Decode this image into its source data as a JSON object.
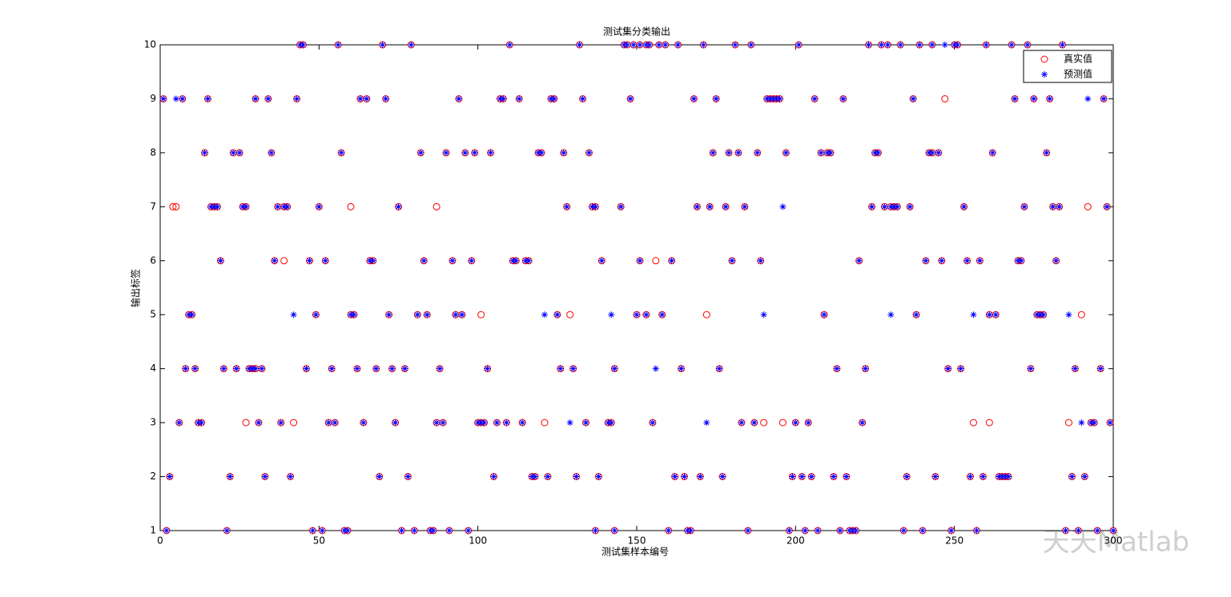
{
  "chart_data": {
    "type": "scatter",
    "title": "测试集分类输出",
    "xlabel": "测试集样本编号",
    "ylabel": "输出标签",
    "watermark": "天天Matlab",
    "legend": "northeast",
    "xlim": [
      0,
      300
    ],
    "xticks": [
      0,
      50,
      100,
      150,
      200,
      250,
      300
    ],
    "ylim": [
      1,
      10
    ],
    "yticks": [
      1,
      2,
      3,
      4,
      5,
      6,
      7,
      8,
      9,
      10
    ],
    "series": [
      {
        "name": "真实值",
        "color": "#ff0000",
        "marker": "circle",
        "x": [
          44,
          45,
          56,
          70,
          79,
          110,
          132,
          146,
          147,
          149,
          151,
          153,
          154,
          157,
          159,
          163,
          171,
          181,
          186,
          201,
          223,
          227,
          229,
          233,
          239,
          243,
          250,
          251,
          260,
          268,
          273,
          284,
          1,
          7,
          15,
          30,
          34,
          43,
          63,
          65,
          71,
          94,
          107,
          108,
          113,
          123,
          124,
          133,
          148,
          168,
          175,
          191,
          192,
          193,
          194,
          195,
          206,
          215,
          237,
          269,
          275,
          280,
          297,
          247,
          14,
          23,
          25,
          35,
          57,
          82,
          90,
          96,
          99,
          104,
          119,
          120,
          127,
          135,
          174,
          179,
          182,
          188,
          197,
          208,
          210,
          211,
          225,
          226,
          242,
          243,
          245,
          262,
          279,
          16,
          17,
          18,
          26,
          27,
          37,
          39,
          40,
          50,
          75,
          128,
          136,
          137,
          145,
          169,
          173,
          178,
          184,
          224,
          228,
          230,
          231,
          232,
          236,
          253,
          272,
          281,
          283,
          298,
          4,
          5,
          60,
          87,
          292,
          19,
          36,
          47,
          52,
          66,
          67,
          83,
          92,
          98,
          111,
          112,
          115,
          116,
          139,
          151,
          161,
          180,
          189,
          220,
          241,
          246,
          254,
          258,
          270,
          271,
          282,
          39,
          156,
          9,
          10,
          49,
          60,
          61,
          72,
          81,
          84,
          93,
          95,
          125,
          150,
          153,
          158,
          209,
          238,
          261,
          263,
          276,
          277,
          278,
          101,
          129,
          172,
          290,
          8,
          11,
          20,
          24,
          28,
          29,
          30,
          32,
          46,
          54,
          62,
          68,
          73,
          77,
          88,
          103,
          126,
          130,
          143,
          164,
          176,
          213,
          222,
          248,
          252,
          274,
          288,
          296,
          6,
          12,
          13,
          31,
          38,
          53,
          55,
          64,
          74,
          87,
          89,
          100,
          101,
          102,
          106,
          109,
          114,
          134,
          141,
          142,
          155,
          183,
          187,
          200,
          204,
          221,
          293,
          294,
          299,
          27,
          42,
          121,
          190,
          196,
          256,
          261,
          286,
          3,
          22,
          33,
          41,
          69,
          78,
          105,
          117,
          118,
          122,
          131,
          138,
          162,
          165,
          170,
          177,
          199,
          202,
          205,
          212,
          216,
          235,
          244,
          255,
          259,
          264,
          265,
          266,
          267,
          287,
          291,
          2,
          21,
          48,
          51,
          58,
          59,
          76,
          80,
          85,
          86,
          91,
          97,
          137,
          143,
          160,
          166,
          167,
          185,
          198,
          203,
          207,
          214,
          217,
          218,
          219,
          234,
          240,
          249,
          257,
          285,
          289,
          295,
          300
        ],
        "values": [
          10,
          10,
          10,
          10,
          10,
          10,
          10,
          10,
          10,
          10,
          10,
          10,
          10,
          10,
          10,
          10,
          10,
          10,
          10,
          10,
          10,
          10,
          10,
          10,
          10,
          10,
          10,
          10,
          10,
          10,
          10,
          10,
          9,
          9,
          9,
          9,
          9,
          9,
          9,
          9,
          9,
          9,
          9,
          9,
          9,
          9,
          9,
          9,
          9,
          9,
          9,
          9,
          9,
          9,
          9,
          9,
          9,
          9,
          9,
          9,
          9,
          9,
          9,
          9,
          8,
          8,
          8,
          8,
          8,
          8,
          8,
          8,
          8,
          8,
          8,
          8,
          8,
          8,
          8,
          8,
          8,
          8,
          8,
          8,
          8,
          8,
          8,
          8,
          8,
          8,
          8,
          8,
          8,
          7,
          7,
          7,
          7,
          7,
          7,
          7,
          7,
          7,
          7,
          7,
          7,
          7,
          7,
          7,
          7,
          7,
          7,
          7,
          7,
          7,
          7,
          7,
          7,
          7,
          7,
          7,
          7,
          7,
          7,
          7,
          7,
          7,
          7,
          6,
          6,
          6,
          6,
          6,
          6,
          6,
          6,
          6,
          6,
          6,
          6,
          6,
          6,
          6,
          6,
          6,
          6,
          6,
          6,
          6,
          6,
          6,
          6,
          6,
          6,
          6,
          6,
          5,
          5,
          5,
          5,
          5,
          5,
          5,
          5,
          5,
          5,
          5,
          5,
          5,
          5,
          5,
          5,
          5,
          5,
          5,
          5,
          5,
          5,
          5,
          5,
          5,
          4,
          4,
          4,
          4,
          4,
          4,
          4,
          4,
          4,
          4,
          4,
          4,
          4,
          4,
          4,
          4,
          4,
          4,
          4,
          4,
          4,
          4,
          4,
          4,
          4,
          4,
          4,
          4,
          3,
          3,
          3,
          3,
          3,
          3,
          3,
          3,
          3,
          3,
          3,
          3,
          3,
          3,
          3,
          3,
          3,
          3,
          3,
          3,
          3,
          3,
          3,
          3,
          3,
          3,
          3,
          3,
          3,
          3,
          3,
          3,
          3,
          3,
          3,
          3,
          3,
          2,
          2,
          2,
          2,
          2,
          2,
          2,
          2,
          2,
          2,
          2,
          2,
          2,
          2,
          2,
          2,
          2,
          2,
          2,
          2,
          2,
          2,
          2,
          2,
          2,
          2,
          2,
          2,
          2,
          2,
          2,
          1,
          1,
          1,
          1,
          1,
          1,
          1,
          1,
          1,
          1,
          1,
          1,
          1,
          1,
          1,
          1,
          1,
          1,
          1,
          1,
          1,
          1,
          1,
          1,
          1,
          1,
          1,
          1,
          1,
          1,
          1,
          1,
          1
        ]
      },
      {
        "name": "预测值",
        "color": "#0000ff",
        "marker": "asterisk",
        "x": [
          44,
          45,
          56,
          70,
          79,
          110,
          132,
          146,
          147,
          149,
          151,
          153,
          154,
          157,
          159,
          163,
          171,
          181,
          186,
          201,
          223,
          227,
          229,
          233,
          239,
          243,
          250,
          251,
          260,
          268,
          273,
          284,
          247,
          1,
          7,
          15,
          30,
          34,
          43,
          63,
          65,
          71,
          94,
          107,
          108,
          113,
          123,
          124,
          133,
          148,
          168,
          175,
          191,
          192,
          193,
          194,
          195,
          206,
          215,
          237,
          269,
          275,
          280,
          297,
          5,
          292,
          14,
          23,
          25,
          35,
          57,
          82,
          90,
          96,
          99,
          104,
          119,
          120,
          127,
          135,
          174,
          179,
          182,
          188,
          197,
          208,
          210,
          211,
          225,
          226,
          242,
          243,
          245,
          262,
          279,
          16,
          17,
          18,
          26,
          27,
          37,
          39,
          40,
          50,
          75,
          128,
          136,
          137,
          145,
          169,
          173,
          178,
          184,
          224,
          228,
          230,
          231,
          232,
          236,
          253,
          272,
          281,
          283,
          298,
          196,
          19,
          36,
          47,
          52,
          66,
          67,
          83,
          92,
          98,
          111,
          112,
          115,
          116,
          139,
          151,
          161,
          180,
          189,
          220,
          241,
          246,
          254,
          258,
          270,
          271,
          282,
          9,
          10,
          49,
          60,
          61,
          72,
          81,
          84,
          93,
          95,
          125,
          150,
          153,
          158,
          209,
          238,
          261,
          263,
          276,
          277,
          278,
          42,
          121,
          142,
          190,
          230,
          256,
          286,
          8,
          11,
          20,
          24,
          28,
          29,
          30,
          32,
          46,
          54,
          62,
          68,
          73,
          77,
          88,
          103,
          126,
          130,
          143,
          164,
          176,
          213,
          222,
          248,
          252,
          274,
          288,
          296,
          156,
          6,
          12,
          13,
          31,
          38,
          53,
          55,
          64,
          74,
          87,
          89,
          100,
          101,
          102,
          106,
          109,
          114,
          134,
          141,
          142,
          155,
          183,
          187,
          200,
          204,
          221,
          293,
          294,
          299,
          129,
          172,
          290,
          3,
          22,
          33,
          41,
          69,
          78,
          105,
          117,
          118,
          122,
          131,
          138,
          162,
          165,
          170,
          177,
          199,
          202,
          205,
          212,
          216,
          235,
          244,
          255,
          259,
          264,
          265,
          266,
          267,
          287,
          291,
          2,
          21,
          48,
          51,
          58,
          59,
          76,
          80,
          85,
          86,
          91,
          97,
          137,
          143,
          160,
          166,
          167,
          185,
          198,
          203,
          207,
          214,
          217,
          218,
          219,
          234,
          240,
          249,
          257,
          285,
          289,
          295,
          300
        ],
        "values": [
          10,
          10,
          10,
          10,
          10,
          10,
          10,
          10,
          10,
          10,
          10,
          10,
          10,
          10,
          10,
          10,
          10,
          10,
          10,
          10,
          10,
          10,
          10,
          10,
          10,
          10,
          10,
          10,
          10,
          10,
          10,
          10,
          10,
          9,
          9,
          9,
          9,
          9,
          9,
          9,
          9,
          9,
          9,
          9,
          9,
          9,
          9,
          9,
          9,
          9,
          9,
          9,
          9,
          9,
          9,
          9,
          9,
          9,
          9,
          9,
          9,
          9,
          9,
          9,
          9,
          9,
          8,
          8,
          8,
          8,
          8,
          8,
          8,
          8,
          8,
          8,
          8,
          8,
          8,
          8,
          8,
          8,
          8,
          8,
          8,
          8,
          8,
          8,
          8,
          8,
          8,
          8,
          8,
          8,
          8,
          7,
          7,
          7,
          7,
          7,
          7,
          7,
          7,
          7,
          7,
          7,
          7,
          7,
          7,
          7,
          7,
          7,
          7,
          7,
          7,
          7,
          7,
          7,
          7,
          7,
          7,
          7,
          7,
          7,
          7,
          6,
          6,
          6,
          6,
          6,
          6,
          6,
          6,
          6,
          6,
          6,
          6,
          6,
          6,
          6,
          6,
          6,
          6,
          6,
          6,
          6,
          6,
          6,
          6,
          6,
          6,
          5,
          5,
          5,
          5,
          5,
          5,
          5,
          5,
          5,
          5,
          5,
          5,
          5,
          5,
          5,
          5,
          5,
          5,
          5,
          5,
          5,
          5,
          5,
          5,
          5,
          5,
          5,
          5,
          4,
          4,
          4,
          4,
          4,
          4,
          4,
          4,
          4,
          4,
          4,
          4,
          4,
          4,
          4,
          4,
          4,
          4,
          4,
          4,
          4,
          4,
          4,
          4,
          4,
          4,
          4,
          4,
          4,
          3,
          3,
          3,
          3,
          3,
          3,
          3,
          3,
          3,
          3,
          3,
          3,
          3,
          3,
          3,
          3,
          3,
          3,
          3,
          3,
          3,
          3,
          3,
          3,
          3,
          3,
          3,
          3,
          3,
          3,
          3,
          3,
          2,
          2,
          2,
          2,
          2,
          2,
          2,
          2,
          2,
          2,
          2,
          2,
          2,
          2,
          2,
          2,
          2,
          2,
          2,
          2,
          2,
          2,
          2,
          2,
          2,
          2,
          2,
          2,
          2,
          2,
          2,
          1,
          1,
          1,
          1,
          1,
          1,
          1,
          1,
          1,
          1,
          1,
          1,
          1,
          1,
          1,
          1,
          1,
          1,
          1,
          1,
          1,
          1,
          1,
          1,
          1,
          1,
          1,
          1,
          1,
          1,
          1,
          1,
          1
        ]
      }
    ]
  }
}
